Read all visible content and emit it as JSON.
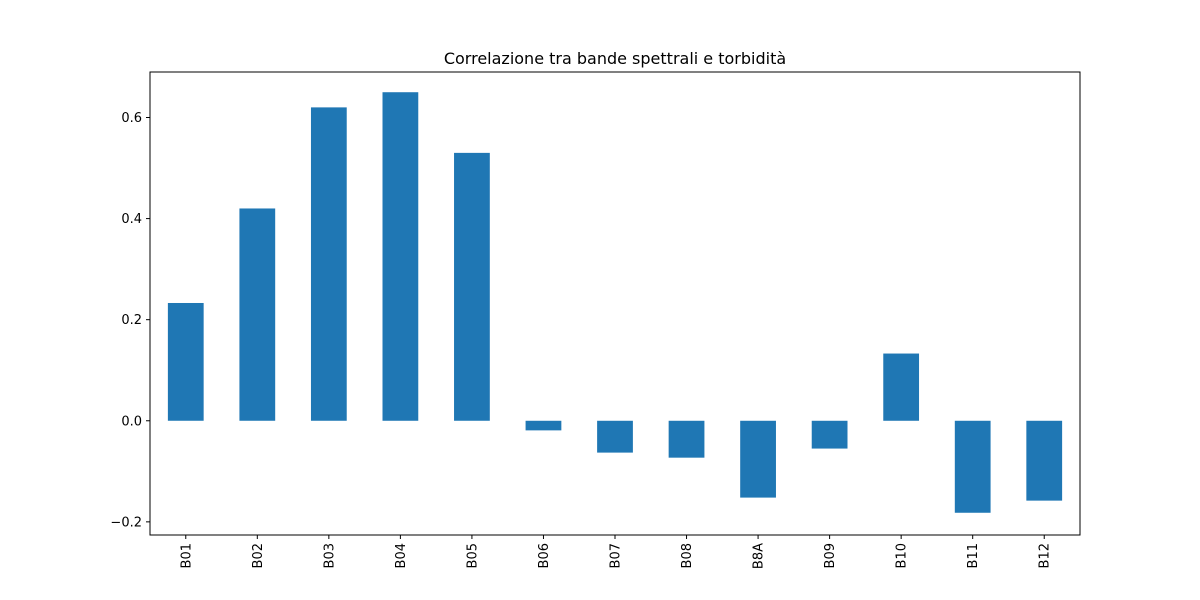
{
  "chart_data": {
    "type": "bar",
    "title": "Correlazione tra bande spettrali e torbidità",
    "xlabel": "",
    "ylabel": "",
    "categories": [
      "B01",
      "B02",
      "B03",
      "B04",
      "B05",
      "B06",
      "B07",
      "B08",
      "B8A",
      "B09",
      "B10",
      "B11",
      "B12"
    ],
    "values": [
      0.233,
      0.42,
      0.62,
      0.65,
      0.53,
      -0.019,
      -0.063,
      -0.073,
      -0.152,
      -0.055,
      0.133,
      -0.182,
      -0.158
    ],
    "ylim": [
      -0.226,
      0.69
    ],
    "yticks": [
      -0.2,
      0.0,
      0.2,
      0.4,
      0.6
    ],
    "ytick_labels": [
      "−0.2",
      "0.0",
      "0.2",
      "0.4",
      "0.6"
    ],
    "bar_color": "#1f77b4",
    "grid": false,
    "legend": "none"
  }
}
